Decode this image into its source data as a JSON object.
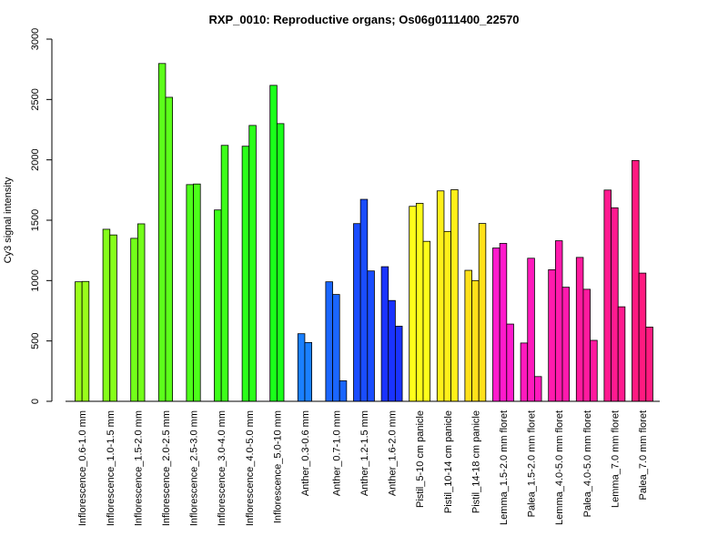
{
  "chart_data": {
    "type": "bar",
    "title": "RXP_0010: Reproductive organs; Os06g0111400_22570",
    "xlabel": "",
    "ylabel": "Cy3 signal intensity",
    "ylim": [
      0,
      3000
    ],
    "yticks": [
      0,
      500,
      1000,
      1500,
      2000,
      2500,
      3000
    ],
    "grid": false,
    "legend": "none",
    "groups": [
      {
        "label": "Inflorescence_0.6-1.0 mm",
        "color": "#99ff1a",
        "values": [
          990,
          993
        ]
      },
      {
        "label": "Inflorescence_1.0-1.5 mm",
        "color": "#85ff1a",
        "values": [
          1425,
          1378
        ]
      },
      {
        "label": "Inflorescence_1.5-2.0 mm",
        "color": "#73ff1a",
        "values": [
          1350,
          1470
        ]
      },
      {
        "label": "Inflorescence_2.0-2.5 mm",
        "color": "#5cff1a",
        "values": [
          2798,
          2518
        ]
      },
      {
        "label": "Inflorescence_2.5-3.0 mm",
        "color": "#4dff1a",
        "values": [
          1795,
          1800
        ]
      },
      {
        "label": "Inflorescence_3.0-4.0 mm",
        "color": "#3dff1a",
        "values": [
          1585,
          2120
        ]
      },
      {
        "label": "Inflorescence_4.0-5.0 mm",
        "color": "#2bff1a",
        "values": [
          2113,
          2285
        ]
      },
      {
        "label": "Inflorescence_5.0-10 mm",
        "color": "#1aff1a",
        "values": [
          2617,
          2300
        ]
      },
      {
        "label": "Anther_0.3-0.6 mm",
        "color": "#1a80ff",
        "values": [
          560,
          487
        ]
      },
      {
        "label": "Anther_0.7-1.0 mm",
        "color": "#1a66ff",
        "values": [
          990,
          885,
          170
        ]
      },
      {
        "label": "Anther_1.2-1.5 mm",
        "color": "#1a4dff",
        "values": [
          1472,
          1673,
          1080
        ]
      },
      {
        "label": "Anther_1.6-2.0 mm",
        "color": "#1a33ff",
        "values": [
          1115,
          835,
          622
        ]
      },
      {
        "label": "Pistil_5-10 cm panicle",
        "color": "#ffff1a",
        "values": [
          1615,
          1640,
          1325
        ]
      },
      {
        "label": "Pistil_10-14 cm panicle",
        "color": "#fff01a",
        "values": [
          1743,
          1407,
          1753
        ]
      },
      {
        "label": "Pistil_14-18 cm panicle",
        "color": "#ffe11a",
        "values": [
          1085,
          1000,
          1473
        ]
      },
      {
        "label": "Lemma_1.5-2.0 mm floret",
        "color": "#ff1acc",
        "values": [
          1270,
          1308,
          640
        ]
      },
      {
        "label": "Palea_1.5-2.0 mm floret",
        "color": "#ff1abd",
        "values": [
          483,
          1185,
          205
        ]
      },
      {
        "label": "Lemma_4.0-5.0 mm floret",
        "color": "#ff1aad",
        "values": [
          1090,
          1330,
          945
        ]
      },
      {
        "label": "Palea_4.0-5.0 mm floret",
        "color": "#ff1a9e",
        "values": [
          1192,
          928,
          505
        ]
      },
      {
        "label": "Lemma_7.0 mm floret",
        "color": "#ff1a8f",
        "values": [
          1750,
          1603,
          783
        ]
      },
      {
        "label": "Palea_7.0 mm floret",
        "color": "#ff1a80",
        "values": [
          1995,
          1062,
          615
        ]
      }
    ]
  }
}
